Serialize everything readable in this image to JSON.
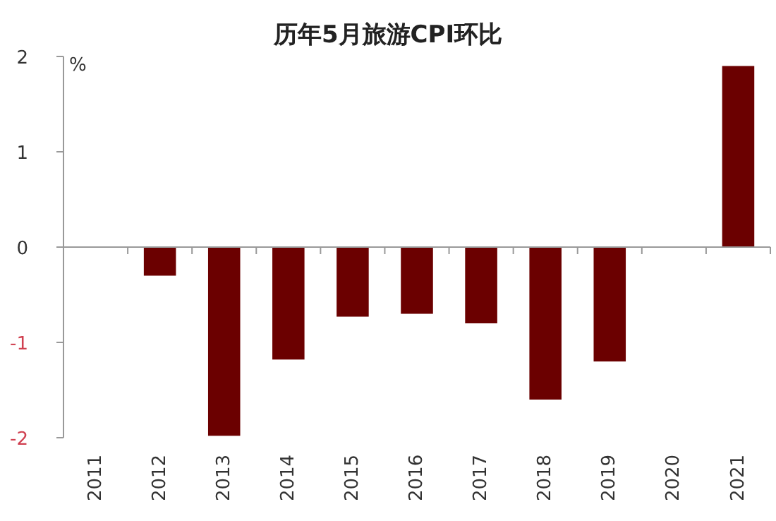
{
  "chart_data": {
    "type": "bar",
    "title": "历年5月旅游CPI环比",
    "ylabel": "%",
    "categories": [
      "2011",
      "2012",
      "2013",
      "2014",
      "2015",
      "2016",
      "2017",
      "2018",
      "2019",
      "2020",
      "2021"
    ],
    "values": [
      null,
      -0.3,
      -1.98,
      -1.18,
      -0.73,
      -0.7,
      -0.8,
      -1.6,
      -1.2,
      null,
      1.9
    ],
    "color": "#6b0000",
    "ylim": [
      -2,
      2
    ],
    "yticks": [
      -2,
      -1,
      0,
      1,
      2
    ]
  }
}
